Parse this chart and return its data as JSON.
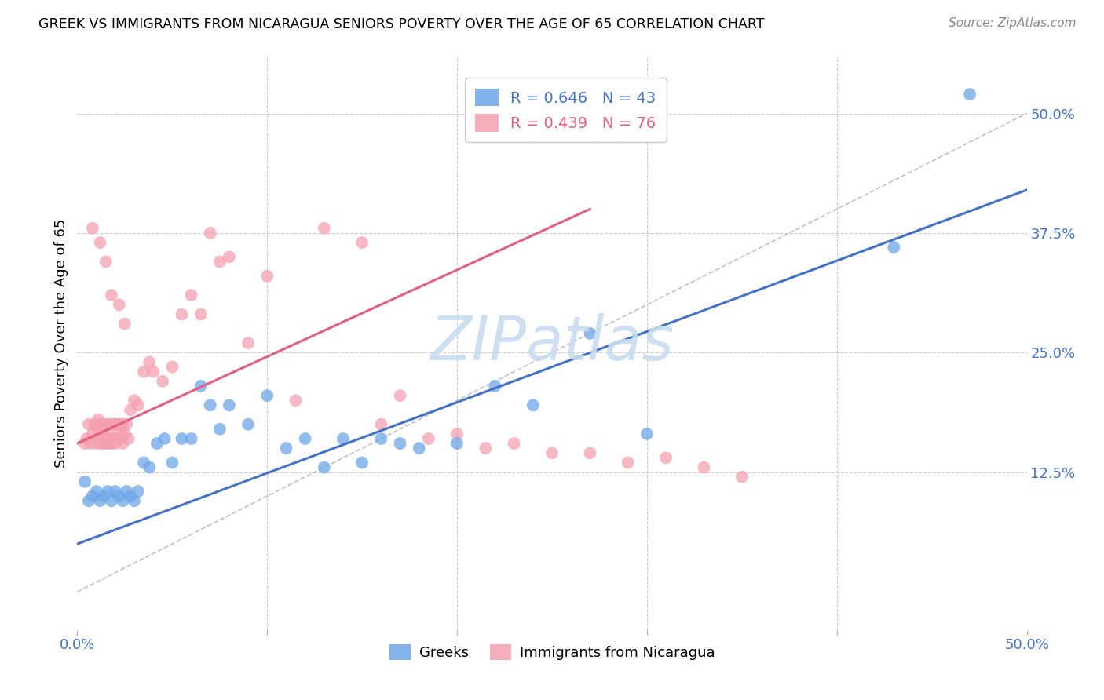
{
  "title": "GREEK VS IMMIGRANTS FROM NICARAGUA SENIORS POVERTY OVER THE AGE OF 65 CORRELATION CHART",
  "source": "Source: ZipAtlas.com",
  "ylabel_label": "Seniors Poverty Over the Age of 65",
  "xlim": [
    0.0,
    0.5
  ],
  "ylim": [
    -0.04,
    0.56
  ],
  "legend_blue_R": "R = 0.646",
  "legend_blue_N": "N = 43",
  "legend_pink_R": "R = 0.439",
  "legend_pink_N": "N = 76",
  "legend_label_blue": "Greeks",
  "legend_label_pink": "Immigrants from Nicaragua",
  "watermark": "ZIPatlas",
  "blue_color": "#6EA6E8",
  "pink_color": "#F4A0B0",
  "blue_line_color": "#4472C4",
  "pink_line_color": "#E06080",
  "diag_line_color": "#BBBBBB",
  "blue_scatter_x": [
    0.004,
    0.006,
    0.008,
    0.01,
    0.012,
    0.014,
    0.016,
    0.018,
    0.02,
    0.022,
    0.024,
    0.026,
    0.028,
    0.03,
    0.032,
    0.035,
    0.038,
    0.042,
    0.046,
    0.05,
    0.055,
    0.06,
    0.065,
    0.07,
    0.075,
    0.08,
    0.09,
    0.1,
    0.11,
    0.12,
    0.13,
    0.14,
    0.15,
    0.16,
    0.17,
    0.18,
    0.2,
    0.22,
    0.24,
    0.27,
    0.3,
    0.43,
    0.47
  ],
  "blue_scatter_y": [
    0.115,
    0.095,
    0.1,
    0.105,
    0.095,
    0.1,
    0.105,
    0.095,
    0.105,
    0.1,
    0.095,
    0.105,
    0.1,
    0.095,
    0.105,
    0.135,
    0.13,
    0.155,
    0.16,
    0.135,
    0.16,
    0.16,
    0.215,
    0.195,
    0.17,
    0.195,
    0.175,
    0.205,
    0.15,
    0.16,
    0.13,
    0.16,
    0.135,
    0.16,
    0.155,
    0.15,
    0.155,
    0.215,
    0.195,
    0.27,
    0.165,
    0.36,
    0.52
  ],
  "pink_scatter_x": [
    0.004,
    0.005,
    0.006,
    0.007,
    0.008,
    0.009,
    0.01,
    0.01,
    0.011,
    0.011,
    0.012,
    0.012,
    0.013,
    0.013,
    0.014,
    0.014,
    0.015,
    0.015,
    0.016,
    0.016,
    0.017,
    0.017,
    0.018,
    0.018,
    0.019,
    0.019,
    0.02,
    0.02,
    0.021,
    0.021,
    0.022,
    0.022,
    0.023,
    0.023,
    0.024,
    0.024,
    0.025,
    0.026,
    0.027,
    0.028,
    0.03,
    0.032,
    0.035,
    0.038,
    0.04,
    0.045,
    0.05,
    0.055,
    0.06,
    0.065,
    0.07,
    0.075,
    0.08,
    0.09,
    0.1,
    0.115,
    0.13,
    0.15,
    0.16,
    0.17,
    0.185,
    0.2,
    0.215,
    0.23,
    0.25,
    0.27,
    0.29,
    0.31,
    0.33,
    0.35,
    0.008,
    0.012,
    0.015,
    0.018,
    0.022,
    0.025
  ],
  "pink_scatter_y": [
    0.155,
    0.16,
    0.175,
    0.155,
    0.165,
    0.175,
    0.155,
    0.175,
    0.165,
    0.18,
    0.155,
    0.175,
    0.165,
    0.175,
    0.155,
    0.17,
    0.155,
    0.175,
    0.16,
    0.175,
    0.155,
    0.17,
    0.155,
    0.175,
    0.16,
    0.175,
    0.155,
    0.175,
    0.16,
    0.175,
    0.16,
    0.175,
    0.165,
    0.175,
    0.155,
    0.175,
    0.165,
    0.175,
    0.16,
    0.19,
    0.2,
    0.195,
    0.23,
    0.24,
    0.23,
    0.22,
    0.235,
    0.29,
    0.31,
    0.29,
    0.375,
    0.345,
    0.35,
    0.26,
    0.33,
    0.2,
    0.38,
    0.365,
    0.175,
    0.205,
    0.16,
    0.165,
    0.15,
    0.155,
    0.145,
    0.145,
    0.135,
    0.14,
    0.13,
    0.12,
    0.38,
    0.365,
    0.345,
    0.31,
    0.3,
    0.28
  ]
}
